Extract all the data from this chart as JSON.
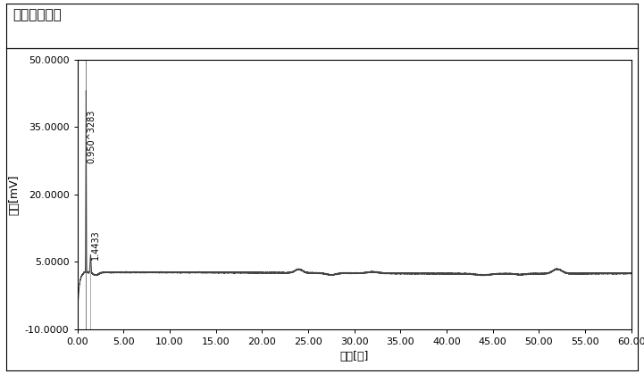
{
  "title": "크로마토그램",
  "xlabel": "시간[분]",
  "ylabel": "전압[mV]",
  "xlim": [
    0,
    60
  ],
  "ylim": [
    -10,
    50
  ],
  "yticks": [
    -10.0,
    5.0,
    20.0,
    35.0,
    50.0
  ],
  "ytick_labels": [
    "-10.0000",
    "5.0000",
    "20.0000",
    "35.0000",
    "50.0000"
  ],
  "xticks": [
    0,
    5,
    10,
    15,
    20,
    25,
    30,
    35,
    40,
    45,
    50,
    55,
    60
  ],
  "xtick_labels": [
    "0.00",
    "5.00",
    "10.00",
    "15.00",
    "20.00",
    "25.00",
    "30.00",
    "35.00",
    "40.00",
    "45.00",
    "50.00",
    "55.00",
    "60.00"
  ],
  "peak1_x": 0.95,
  "peak1_y": 43.0,
  "peak2_x": 1.44,
  "peak2_y": 6.5,
  "baseline_y": 2.5,
  "annotation1": "0.950^3283",
  "annotation2": "1.4433",
  "line_color": "#444444",
  "background_color": "#ffffff",
  "title_fontsize": 11,
  "axis_fontsize": 9,
  "tick_fontsize": 8,
  "annot_fontsize": 7
}
